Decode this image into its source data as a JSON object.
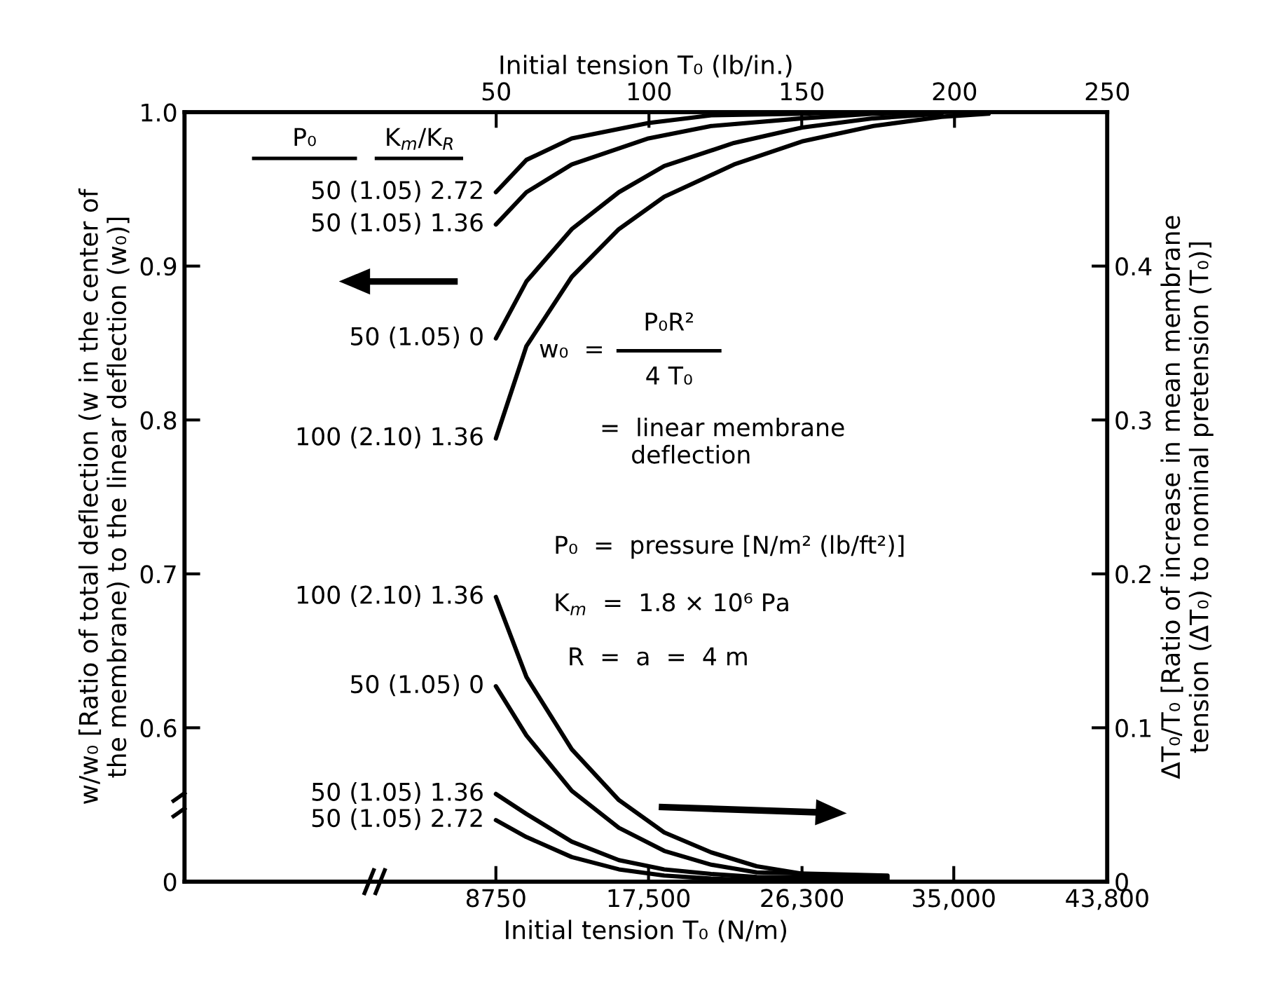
{
  "chart_data": {
    "type": "line",
    "xlabel": "Initial tension T₀ (N/m)",
    "x2label": "Initial tension T₀ (lb/in.)",
    "ylabel": "w/w₀ [Ratio of total deflection (w in the center of\nthe membrane) to the linear deflection (w₀)]",
    "y2label": "ΔT₀/T₀ [Ratio of increase in mean membrane\ntension (ΔT₀) to nominal pretension (T₀)]",
    "xlim": [
      -9100,
      43800
    ],
    "xticks": [
      8750,
      {
        "value": 17500,
        "label": "17,500"
      },
      {
        "value": 26300,
        "label": "26,300"
      },
      {
        "value": 35000,
        "label": "35,000"
      },
      {
        "value": 43800,
        "label": "43,800"
      }
    ],
    "x2lim": [
      -52,
      250
    ],
    "x2ticks": [
      50,
      100,
      150,
      200,
      250
    ],
    "ylim": [
      0.5,
      1.0
    ],
    "yticks": [
      {
        "value": 0.5,
        "label": "0"
      },
      0.6,
      0.7,
      0.8,
      0.9,
      {
        "value": 1.0,
        "label": "1.0"
      }
    ],
    "y2lim": [
      0,
      0.5
    ],
    "y2ticks": [
      0,
      0.1,
      0.2,
      0.3,
      0.4
    ],
    "series": [
      {
        "name": "50 (1.05) 2.72",
        "color": "#000000",
        "x": [
          8750,
          10500,
          13100,
          17500,
          21100,
          26400,
          29000
        ],
        "values": [
          0.948,
          0.969,
          0.983,
          0.993,
          0.998,
          0.999,
          1.0
        ]
      },
      {
        "name": "50 (1.05) 1.36",
        "color": "#000000",
        "x": [
          8750,
          10500,
          13100,
          17500,
          21100,
          26300,
          30400,
          34300
        ],
        "values": [
          0.927,
          0.948,
          0.966,
          0.983,
          0.991,
          0.996,
          0.999,
          1.0
        ]
      },
      {
        "name": "50 (1.05) 0",
        "color": "#000000",
        "x": [
          8750,
          10500,
          13100,
          15800,
          18400,
          22400,
          26300,
          30400,
          34300
        ],
        "values": [
          0.853,
          0.89,
          0.924,
          0.948,
          0.965,
          0.98,
          0.99,
          0.996,
          0.999
        ]
      },
      {
        "name": "100 (2.10) 1.36",
        "color": "#000000",
        "x": [
          8750,
          10500,
          13100,
          15800,
          18400,
          22400,
          26300,
          30400,
          34300,
          37000
        ],
        "values": [
          0.788,
          0.848,
          0.893,
          0.924,
          0.945,
          0.966,
          0.981,
          0.991,
          0.997,
          0.999
        ]
      },
      {
        "name": "100 (2.10) 1.36",
        "color": "#000000",
        "axis": "y2",
        "x": [
          8750,
          10500,
          13100,
          15800,
          18400,
          21100,
          23700,
          26400,
          31200
        ],
        "values": [
          0.185,
          0.133,
          0.086,
          0.053,
          0.032,
          0.019,
          0.01,
          0.005,
          0.003
        ]
      },
      {
        "name": "50 (1.05) 0",
        "color": "#000000",
        "axis": "y2",
        "x": [
          8750,
          10500,
          13100,
          15800,
          18400,
          21100,
          23700,
          31200
        ],
        "values": [
          0.127,
          0.095,
          0.059,
          0.035,
          0.02,
          0.011,
          0.006,
          0.004
        ]
      },
      {
        "name": "50 (1.05) 1.36",
        "color": "#000000",
        "axis": "y2",
        "x": [
          8750,
          10500,
          13100,
          15800,
          18400,
          21100,
          23700,
          31200
        ],
        "values": [
          0.057,
          0.044,
          0.026,
          0.014,
          0.008,
          0.005,
          0.003,
          0.002
        ]
      },
      {
        "name": "50 (1.05) 2.72",
        "color": "#000000",
        "axis": "y2",
        "x": [
          8750,
          10500,
          13100,
          15800,
          18400,
          21100,
          23700,
          31200
        ],
        "values": [
          0.04,
          0.029,
          0.016,
          0.008,
          0.004,
          0.002,
          0.001,
          0.001
        ]
      }
    ],
    "annotations": [
      "P₀",
      "K$_{m}$/K$_{R}$",
      "w₀  =",
      "P₀R²",
      "4 T₀",
      "=  linear membrane\n    deflection",
      "P₀  =  pressure [N/m² (lb/ft²)]",
      "K$_{m}$  =  1.8 × 10⁶ Pa",
      "R  =  a  =  4 m"
    ]
  }
}
